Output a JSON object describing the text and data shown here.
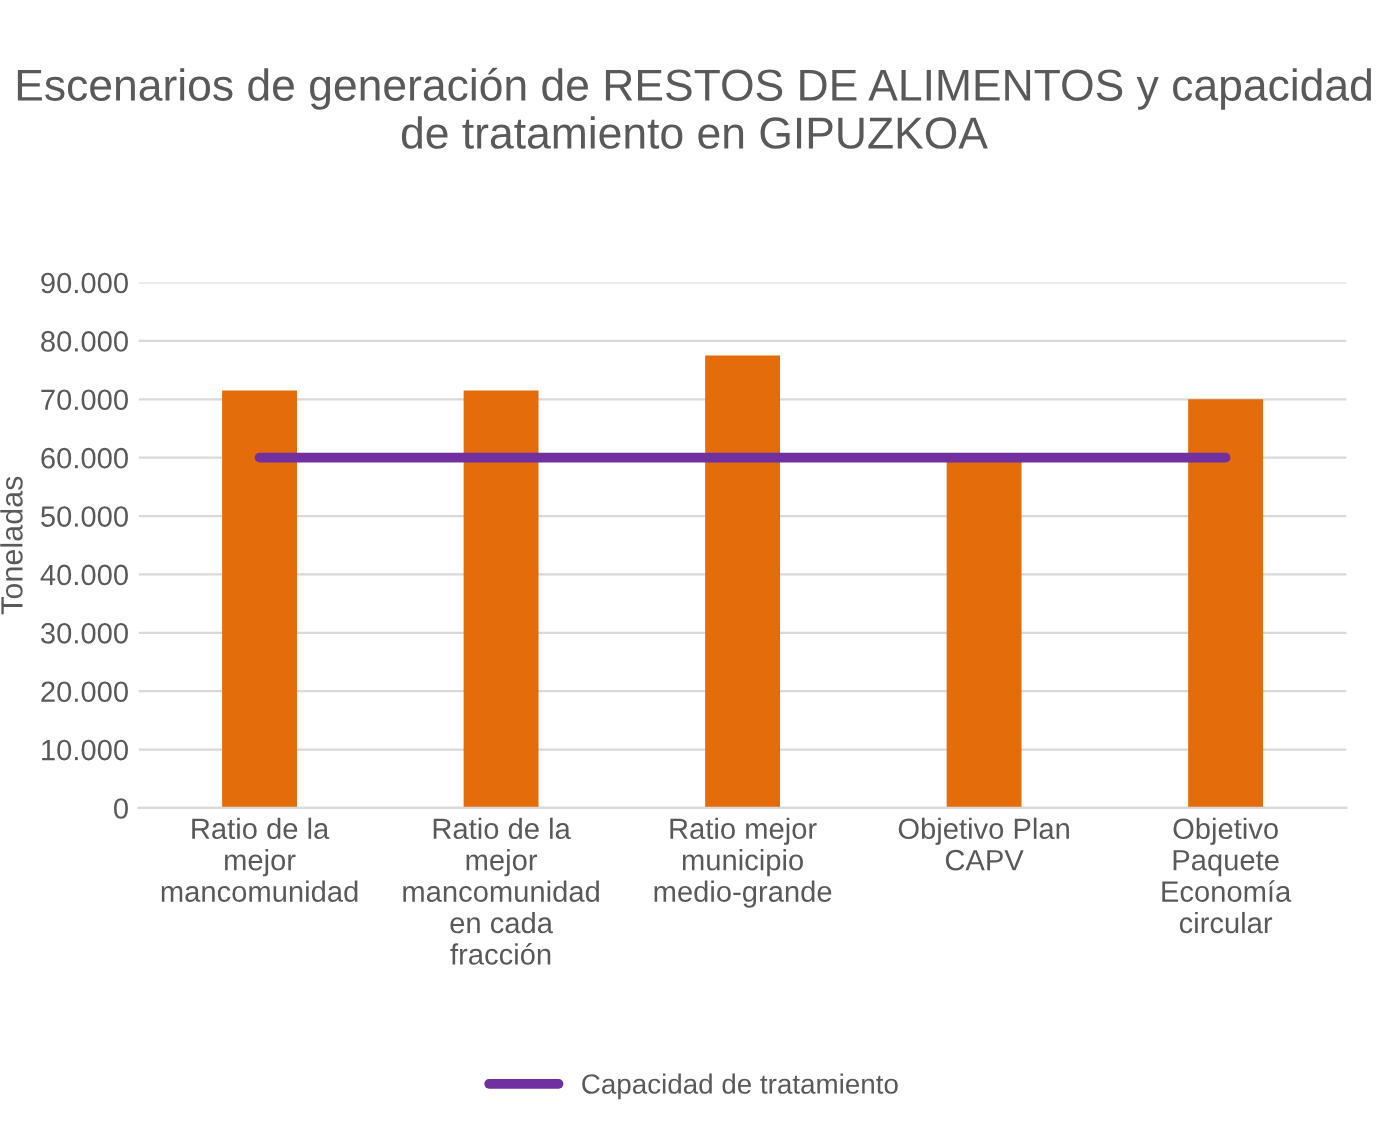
{
  "chart_data": {
    "type": "bar",
    "title": "Escenarios de generación de RESTOS DE ALIMENTOS y capacidad de tratamiento en GIPUZKOA",
    "ylabel": "Toneladas",
    "categories": [
      "Ratio de la\nmejor\nmancomunidad",
      "Ratio de la\nmejor\nmancomunidad\nen cada\nfracción",
      "Ratio mejor\nmunicipio\nmedio-grande",
      "Objetivo Plan\nCAPV",
      "Objetivo\nPaquete\nEconomía\ncircular"
    ],
    "series": [
      {
        "color": "#e46c0a",
        "values": [
          71500,
          71500,
          77500,
          59500,
          70000
        ]
      },
      {
        "type": "line",
        "name": "Capacidad de tratamiento",
        "color": "#7030a0",
        "values": [
          60000,
          60000,
          60000,
          60000,
          60000
        ]
      }
    ],
    "ylim": [
      0,
      90000
    ],
    "yticks": [
      {
        "value": 0,
        "label": "0"
      },
      {
        "value": 10000,
        "label": "10.000"
      },
      {
        "value": 20000,
        "label": "20.000"
      },
      {
        "value": 30000,
        "label": "30.000"
      },
      {
        "value": 40000,
        "label": "40.000"
      },
      {
        "value": 50000,
        "label": "50.000"
      },
      {
        "value": 60000,
        "label": "60.000"
      },
      {
        "value": 70000,
        "label": "70.000"
      },
      {
        "value": 80000,
        "label": "80.000"
      },
      {
        "value": 90000,
        "label": "90.000"
      }
    ],
    "grid": "y",
    "legend": "bottom"
  }
}
